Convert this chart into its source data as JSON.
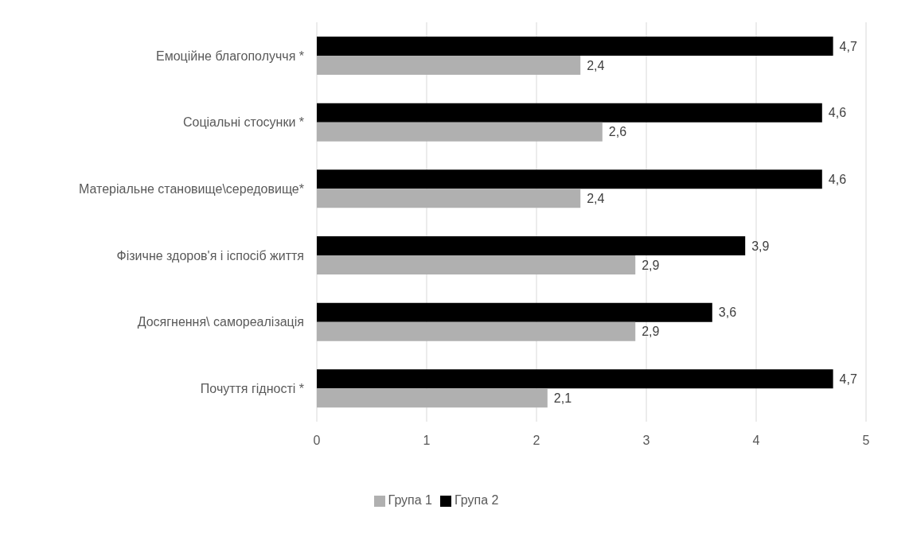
{
  "chart_data": {
    "type": "bar",
    "orientation": "horizontal",
    "categories": [
      "Емоційне благополуччя *",
      "Соціальні стосунки *",
      "Матеріальне становище\\середовище*",
      "Фізичне здоров'я і іспосіб життя",
      "Досягнення\\ самореалізація",
      "Почуття гідності *"
    ],
    "series": [
      {
        "name": "Група 2",
        "color": "#000000",
        "values": [
          4.7,
          4.6,
          4.6,
          3.9,
          3.6,
          4.7
        ],
        "value_labels": [
          "4,7",
          "4,6",
          "4,6",
          "3,9",
          "3,6",
          "4,7"
        ]
      },
      {
        "name": "Група 1",
        "color": "#b0b0b0",
        "values": [
          2.4,
          2.6,
          2.4,
          2.9,
          2.9,
          2.1
        ],
        "value_labels": [
          "2,4",
          "2,6",
          "2,4",
          "2,9",
          "2,9",
          "2,1"
        ]
      }
    ],
    "xlim": [
      0,
      5
    ],
    "xticks": [
      0,
      1,
      2,
      3,
      4,
      5
    ],
    "grid": "x",
    "legend": "bottom"
  }
}
